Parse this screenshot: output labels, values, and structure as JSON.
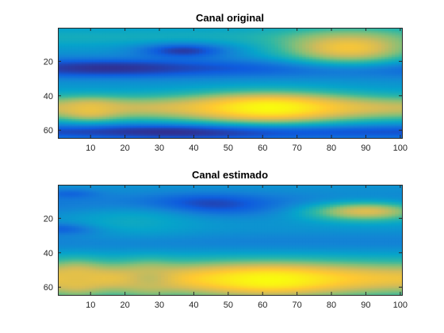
{
  "chart_data": [
    {
      "type": "heatmap",
      "title": "Canal original",
      "xlabel": "",
      "ylabel": "",
      "xlim": [
        1,
        100
      ],
      "ylim": [
        1,
        64
      ],
      "y_reversed": true,
      "x_ticks": [
        10,
        20,
        30,
        40,
        50,
        60,
        70,
        80,
        90,
        100
      ],
      "y_ticks": [
        20,
        40,
        60
      ],
      "colormap": "parula",
      "colormap_stops": [
        "#352a87",
        "#0f5cdd",
        "#1481d6",
        "#06a4ca",
        "#2eb7a4",
        "#87bf77",
        "#d1bb59",
        "#fec832",
        "#f9fb0e"
      ],
      "features": [
        {
          "kind": "band",
          "x0": 1,
          "y0": 6,
          "x1": 100,
          "y1": 5,
          "sigma_y": 4,
          "value": 0.42
        },
        {
          "kind": "band",
          "x0": 1,
          "y0": 24,
          "x1": 100,
          "y1": 24,
          "sigma_y": 4,
          "value": 0.12
        },
        {
          "kind": "band",
          "x0": 1,
          "y0": 47,
          "x1": 100,
          "y1": 47,
          "sigma_y": 5,
          "value": 0.72
        },
        {
          "kind": "band",
          "x0": 1,
          "y0": 61,
          "x1": 100,
          "y1": 61,
          "sigma_y": 3,
          "value": 0.1
        },
        {
          "kind": "blob",
          "x": 37,
          "y": 14,
          "sx": 9,
          "sy": 3,
          "value": 0.04
        },
        {
          "kind": "blob",
          "x": 15,
          "y": 24,
          "sx": 18,
          "sy": 3,
          "value": 0.02
        },
        {
          "kind": "blob",
          "x": 38,
          "y": 61,
          "sx": 20,
          "sy": 2.5,
          "value": 0.0
        },
        {
          "kind": "blob",
          "x": 62,
          "y": 47,
          "sx": 16,
          "sy": 6,
          "value": 1.0
        },
        {
          "kind": "blob",
          "x": 85,
          "y": 12,
          "sx": 14,
          "sy": 7,
          "value": 0.85
        },
        {
          "kind": "blob",
          "x": 10,
          "y": 48,
          "sx": 6,
          "sy": 4,
          "value": 0.82
        }
      ]
    },
    {
      "type": "heatmap",
      "title": "Canal estimado",
      "xlabel": "",
      "ylabel": "",
      "xlim": [
        1,
        100
      ],
      "ylim": [
        1,
        64
      ],
      "y_reversed": true,
      "x_ticks": [
        10,
        20,
        30,
        40,
        50,
        60,
        70,
        80,
        90,
        100
      ],
      "y_ticks": [
        20,
        40,
        60
      ],
      "colormap": "parula",
      "colormap_stops": [
        "#352a87",
        "#0f5cdd",
        "#1481d6",
        "#06a4ca",
        "#2eb7a4",
        "#87bf77",
        "#d1bb59",
        "#fec832",
        "#f9fb0e"
      ],
      "features": [
        {
          "kind": "band",
          "x0": 1,
          "y0": 12,
          "x1": 100,
          "y1": 12,
          "sigma_y": 5,
          "value": 0.22
        },
        {
          "kind": "band",
          "x0": 1,
          "y0": 34,
          "x1": 100,
          "y1": 34,
          "sigma_y": 4,
          "value": 0.25
        },
        {
          "kind": "band",
          "x0": 1,
          "y0": 55,
          "x1": 100,
          "y1": 55,
          "sigma_y": 7,
          "value": 0.82
        },
        {
          "kind": "blob",
          "x": 44,
          "y": 12,
          "sx": 12,
          "sy": 4,
          "value": 0.05
        },
        {
          "kind": "blob",
          "x": 4,
          "y": 26,
          "sx": 8,
          "sy": 2.5,
          "value": 0.05
        },
        {
          "kind": "blob",
          "x": 4,
          "y": 6,
          "sx": 6,
          "sy": 2,
          "value": 0.15
        },
        {
          "kind": "blob",
          "x": 90,
          "y": 16,
          "sx": 12,
          "sy": 4,
          "value": 0.78
        },
        {
          "kind": "blob",
          "x": 62,
          "y": 56,
          "sx": 16,
          "sy": 6,
          "value": 1.0
        },
        {
          "kind": "blob",
          "x": 6,
          "y": 55,
          "sx": 5,
          "sy": 6,
          "value": 0.8
        },
        {
          "kind": "blob",
          "x": 27,
          "y": 55,
          "sx": 5,
          "sy": 6,
          "value": 0.72
        },
        {
          "kind": "blob",
          "x": 22,
          "y": 22,
          "sx": 14,
          "sy": 6,
          "value": 0.4
        }
      ]
    }
  ]
}
